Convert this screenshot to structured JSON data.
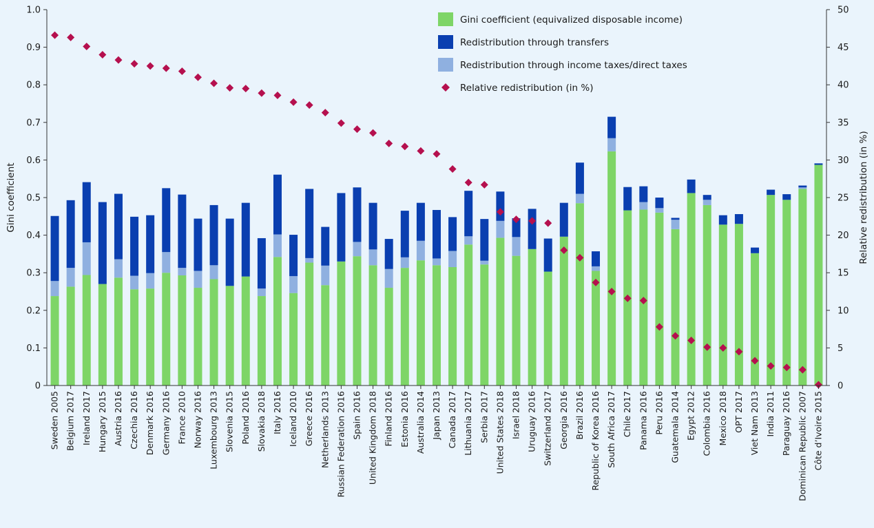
{
  "colors": {
    "background": "#eaf4fc",
    "gini": "#7ed567",
    "taxes": "#8fb0e0",
    "transfers": "#0a3fb0",
    "relative": "#b5104e"
  },
  "chart_data": {
    "type": "bar",
    "stacked": true,
    "categories": [
      "Sweden 2005",
      "Belgium 2017",
      "Ireland 2017",
      "Hungary 2015",
      "Austria 2016",
      "Czechia 2016",
      "Denmark 2016",
      "Germany 2016",
      "France 2010",
      "Norway 2016",
      "Luxembourg 2013",
      "Slovenia 2015",
      "Poland 2016",
      "Slovakia 2018",
      "Italy 2016",
      "Iceland 2010",
      "Greece 2016",
      "Netherlands 2013",
      "Russian Federation 2016",
      "Spain 2016",
      "United Kingdom 2018",
      "Finland 2016",
      "Estonia 2016",
      "Australia 2014",
      "Japan 2013",
      "Canada 2017",
      "Lithuania 2017",
      "Serbia 2017",
      "United States 2018",
      "Israel 2018",
      "Uruguay 2016",
      "Switzerland 2017",
      "Georgia 2016",
      "Brazil 2016",
      "Republic of Korea 2016",
      "South Africa 2017",
      "Chile 2017",
      "Panama 2016",
      "Peru 2016",
      "Guatemala 2014",
      "Egypt 2012",
      "Colombia 2016",
      "Mexico 2018",
      "OPT 2017",
      "Viet Nam 2013",
      "India 2011",
      "Paraguay 2016",
      "Dominican Republic 2007",
      "Côte d’Ivoire 2015"
    ],
    "series": [
      {
        "name": "Gini coefficient (equivalized disposable income)",
        "axis": "left",
        "kind": "bar",
        "values": [
          0.238,
          0.263,
          0.294,
          0.27,
          0.287,
          0.256,
          0.258,
          0.3,
          0.293,
          0.26,
          0.283,
          0.265,
          0.29,
          0.238,
          0.342,
          0.246,
          0.327,
          0.267,
          0.33,
          0.344,
          0.32,
          0.26,
          0.313,
          0.333,
          0.32,
          0.315,
          0.375,
          0.322,
          0.393,
          0.345,
          0.363,
          0.303,
          0.396,
          0.485,
          0.305,
          0.623,
          0.466,
          0.468,
          0.46,
          0.416,
          0.512,
          0.48,
          0.428,
          0.43,
          0.352,
          0.507,
          0.494,
          0.523,
          0.587
        ]
      },
      {
        "name": "Redistribution through income taxes/direct taxes",
        "axis": "left",
        "kind": "bar",
        "values": [
          0.04,
          0.05,
          0.087,
          0.0,
          0.049,
          0.036,
          0.041,
          0.055,
          0.02,
          0.045,
          0.037,
          0.0,
          0.0,
          0.02,
          0.06,
          0.045,
          0.012,
          0.052,
          0.0,
          0.038,
          0.042,
          0.05,
          0.028,
          0.052,
          0.018,
          0.043,
          0.022,
          0.01,
          0.045,
          0.05,
          0.0,
          0.0,
          0.0,
          0.025,
          0.012,
          0.035,
          0.0,
          0.02,
          0.012,
          0.025,
          0.0,
          0.014,
          0.0,
          0.0,
          0.0,
          0.0,
          0.0,
          0.004,
          0.0
        ]
      },
      {
        "name": "Redistribution through transfers",
        "axis": "left",
        "kind": "bar",
        "values": [
          0.173,
          0.18,
          0.16,
          0.218,
          0.174,
          0.157,
          0.154,
          0.17,
          0.195,
          0.139,
          0.16,
          0.179,
          0.196,
          0.134,
          0.159,
          0.11,
          0.184,
          0.103,
          0.182,
          0.145,
          0.124,
          0.08,
          0.124,
          0.101,
          0.129,
          0.09,
          0.121,
          0.111,
          0.078,
          0.05,
          0.107,
          0.088,
          0.09,
          0.083,
          0.04,
          0.057,
          0.062,
          0.042,
          0.028,
          0.005,
          0.036,
          0.013,
          0.025,
          0.026,
          0.015,
          0.014,
          0.015,
          0.005,
          0.004
        ]
      },
      {
        "name": "Relative redistribution (in %)",
        "axis": "right",
        "kind": "scatter",
        "marker": "diamond",
        "values": [
          46.6,
          46.3,
          45.1,
          44.0,
          43.3,
          42.8,
          42.5,
          42.2,
          41.8,
          41.0,
          40.2,
          39.6,
          39.5,
          38.9,
          38.6,
          37.7,
          37.3,
          36.3,
          34.9,
          34.1,
          33.6,
          32.2,
          31.8,
          31.2,
          30.8,
          28.8,
          27.0,
          26.7,
          23.1,
          22.1,
          21.9,
          21.6,
          18.0,
          17.0,
          13.7,
          12.5,
          11.6,
          11.3,
          7.8,
          6.6,
          6.0,
          5.1,
          5.0,
          4.5,
          3.3,
          2.6,
          2.4,
          2.1,
          0.1
        ]
      }
    ],
    "ylabel": "Gini coefficient",
    "ylim": [
      0,
      1.0
    ],
    "yticks": [
      "0",
      "0.1",
      "0.2",
      "0.3",
      "0.4",
      "0.5",
      "0.6",
      "0.7",
      "0.8",
      "0.9",
      "1.0"
    ],
    "y2label": "Relative redistribution (in %)",
    "y2lim": [
      0,
      50
    ],
    "y2ticks": [
      "0",
      "5",
      "10",
      "15",
      "20",
      "25",
      "30",
      "35",
      "40",
      "45",
      "50"
    ],
    "legend_position": "top-right",
    "legend_order": [
      0,
      2,
      1,
      3
    ],
    "grid": false
  }
}
